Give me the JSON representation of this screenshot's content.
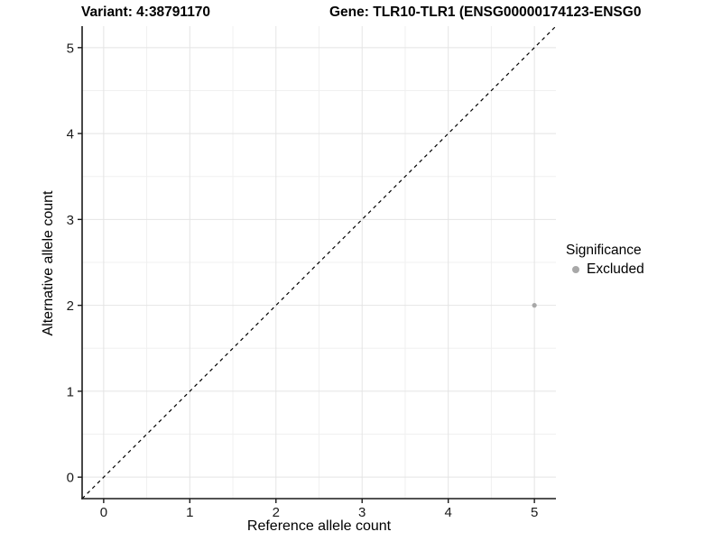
{
  "titles": {
    "variant": "Variant: 4:38791170",
    "gene": "Gene: TLR10-TLR1 (ENSG00000174123-ENSG0"
  },
  "legend": {
    "title": "Significance",
    "items": [
      {
        "label": "Excluded",
        "color": "#a8a8a8"
      }
    ]
  },
  "chart_data": {
    "type": "scatter",
    "title_left": "Variant: 4:38791170",
    "title_right": "Gene: TLR10-TLR1 (ENSG00000174123-ENSG0",
    "xlabel": "Reference allele count",
    "ylabel": "Alternative allele count",
    "xlim": [
      -0.25,
      5.25
    ],
    "ylim": [
      -0.25,
      5.25
    ],
    "xticks": [
      0,
      1,
      2,
      3,
      4,
      5
    ],
    "yticks": [
      0,
      1,
      2,
      3,
      4,
      5
    ],
    "minor_ticks": [
      0.5,
      1.5,
      2.5,
      3.5,
      4.5
    ],
    "grid": true,
    "legend_position": "right",
    "reference_line": {
      "slope": 1,
      "intercept": 0,
      "style": "dashed",
      "color": "#000000"
    },
    "series": [
      {
        "name": "Excluded",
        "color": "#a8a8a8",
        "points": [
          {
            "x": 5,
            "y": 2
          }
        ]
      }
    ]
  },
  "colors": {
    "background": "#ffffff",
    "grid_major": "#e4e4e4",
    "grid_minor": "#f0f0f0",
    "axis_line": "#1a1a1a",
    "tick_label": "#1a1a1a",
    "text": "#000000"
  }
}
